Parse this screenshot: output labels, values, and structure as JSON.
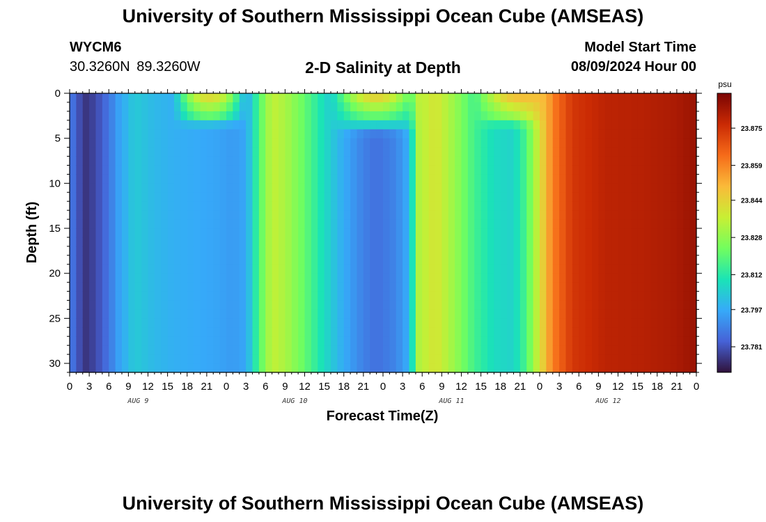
{
  "header": {
    "title": "University of Southern Mississippi Ocean Cube (AMSEAS)",
    "station_id": "WYCM6",
    "station_coords": "30.3260N  89.3260W",
    "plot_title": "2-D Salinity at Depth",
    "model_start_label": "Model Start Time",
    "model_start_value": "08/09/2024 Hour 00"
  },
  "footer": {
    "title": "University of Southern Mississippi Ocean Cube (AMSEAS)"
  },
  "chart_data": {
    "type": "heatmap",
    "xlabel": "Forecast Time(Z)",
    "ylabel": "Depth (ft)",
    "x_hours_range": [
      0,
      96
    ],
    "x_tick_labels": [
      "0",
      "3",
      "6",
      "9",
      "12",
      "15",
      "18",
      "21",
      "0",
      "3",
      "6",
      "9",
      "12",
      "15",
      "18",
      "21",
      "0",
      "3",
      "6",
      "9",
      "12",
      "15",
      "18",
      "21",
      "0",
      "3",
      "6",
      "9",
      "12",
      "15",
      "18",
      "21",
      "0"
    ],
    "day_labels": [
      "AUG 9",
      "AUG 10",
      "AUG 11",
      "AUG 12"
    ],
    "ylim": [
      0,
      31
    ],
    "y_inverted": true,
    "y_ticks": [
      0,
      5,
      10,
      15,
      20,
      25,
      30
    ],
    "colorbar": {
      "unit": "psu",
      "ticks": [
        23.781,
        23.797,
        23.812,
        23.828,
        23.844,
        23.859,
        23.875
      ],
      "range": [
        23.77,
        23.89
      ],
      "colormap": [
        "#30123b",
        "#4662d7",
        "#36aaf9",
        "#1ae4b6",
        "#72fe5e",
        "#c8ef34",
        "#faba39",
        "#f66b19",
        "#ca2a04",
        "#7a0403"
      ]
    },
    "column_salinity_psu": [
      {
        "hour": 0,
        "value": 23.79
      },
      {
        "hour": 1,
        "value": 23.782
      },
      {
        "hour": 2.5,
        "value": 23.776
      },
      {
        "hour": 4,
        "value": 23.779
      },
      {
        "hour": 6,
        "value": 23.787
      },
      {
        "hour": 7.5,
        "value": 23.795
      },
      {
        "hour": 10,
        "value": 23.804
      },
      {
        "hour": 13,
        "value": 23.8
      },
      {
        "hour": 16,
        "value": 23.798
      },
      {
        "hour": 19,
        "value": 23.797
      },
      {
        "hour": 22,
        "value": 23.796
      },
      {
        "hour": 25,
        "value": 23.794
      },
      {
        "hour": 27,
        "value": 23.796
      },
      {
        "hour": 29,
        "value": 23.818
      },
      {
        "hour": 31,
        "value": 23.836
      },
      {
        "hour": 33,
        "value": 23.832
      },
      {
        "hour": 36,
        "value": 23.821
      },
      {
        "hour": 39,
        "value": 23.808
      },
      {
        "hour": 42,
        "value": 23.797
      },
      {
        "hour": 45,
        "value": 23.789
      },
      {
        "hour": 47,
        "value": 23.786
      },
      {
        "hour": 50,
        "value": 23.79
      },
      {
        "hour": 52,
        "value": 23.798
      },
      {
        "hour": 53.5,
        "value": 23.833
      },
      {
        "hour": 56,
        "value": 23.84
      },
      {
        "hour": 59,
        "value": 23.829
      },
      {
        "hour": 62,
        "value": 23.816
      },
      {
        "hour": 65,
        "value": 23.808
      },
      {
        "hour": 68,
        "value": 23.806
      },
      {
        "hour": 70,
        "value": 23.818
      },
      {
        "hour": 72,
        "value": 23.84
      },
      {
        "hour": 74,
        "value": 23.86
      },
      {
        "hour": 77,
        "value": 23.874
      },
      {
        "hour": 82,
        "value": 23.879
      },
      {
        "hour": 88,
        "value": 23.88
      },
      {
        "hour": 93,
        "value": 23.882
      },
      {
        "hour": 96,
        "value": 23.885
      }
    ],
    "surface_anomalies": [
      {
        "hour_start": 16,
        "hour_end": 27,
        "depth": 2.5,
        "peak_psu": 23.846
      },
      {
        "hour_start": 40,
        "hour_end": 54,
        "depth": 3.2,
        "peak_psu": 23.848
      },
      {
        "hour_start": 62,
        "hour_end": 76,
        "depth": 2.6,
        "peak_psu": 23.852
      }
    ]
  }
}
